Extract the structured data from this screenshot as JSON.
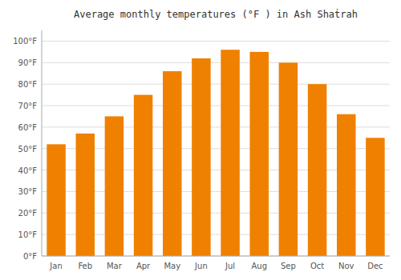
{
  "chart_data": {
    "type": "bar",
    "title": "Average monthly temperatures (°F ) in Ash Shaṫrah",
    "categories": [
      "Jan",
      "Feb",
      "Mar",
      "Apr",
      "May",
      "Jun",
      "Jul",
      "Aug",
      "Sep",
      "Oct",
      "Nov",
      "Dec"
    ],
    "values": [
      52,
      57,
      65,
      75,
      86,
      92,
      96,
      95,
      90,
      80,
      66,
      55
    ],
    "color": "#F08000",
    "ylim": [
      0,
      105
    ],
    "yticks": [
      {
        "value": 0,
        "label": "0°F"
      },
      {
        "value": 10,
        "label": "10°F"
      },
      {
        "value": 20,
        "label": "20°F"
      },
      {
        "value": 30,
        "label": "30°F"
      },
      {
        "value": 40,
        "label": "40°F"
      },
      {
        "value": 50,
        "label": "50°F"
      },
      {
        "value": 60,
        "label": "60°F"
      },
      {
        "value": 70,
        "label": "70°F"
      },
      {
        "value": 80,
        "label": "80°F"
      },
      {
        "value": 90,
        "label": "90°F"
      },
      {
        "value": 100,
        "label": "100°F"
      }
    ],
    "grid": true
  }
}
